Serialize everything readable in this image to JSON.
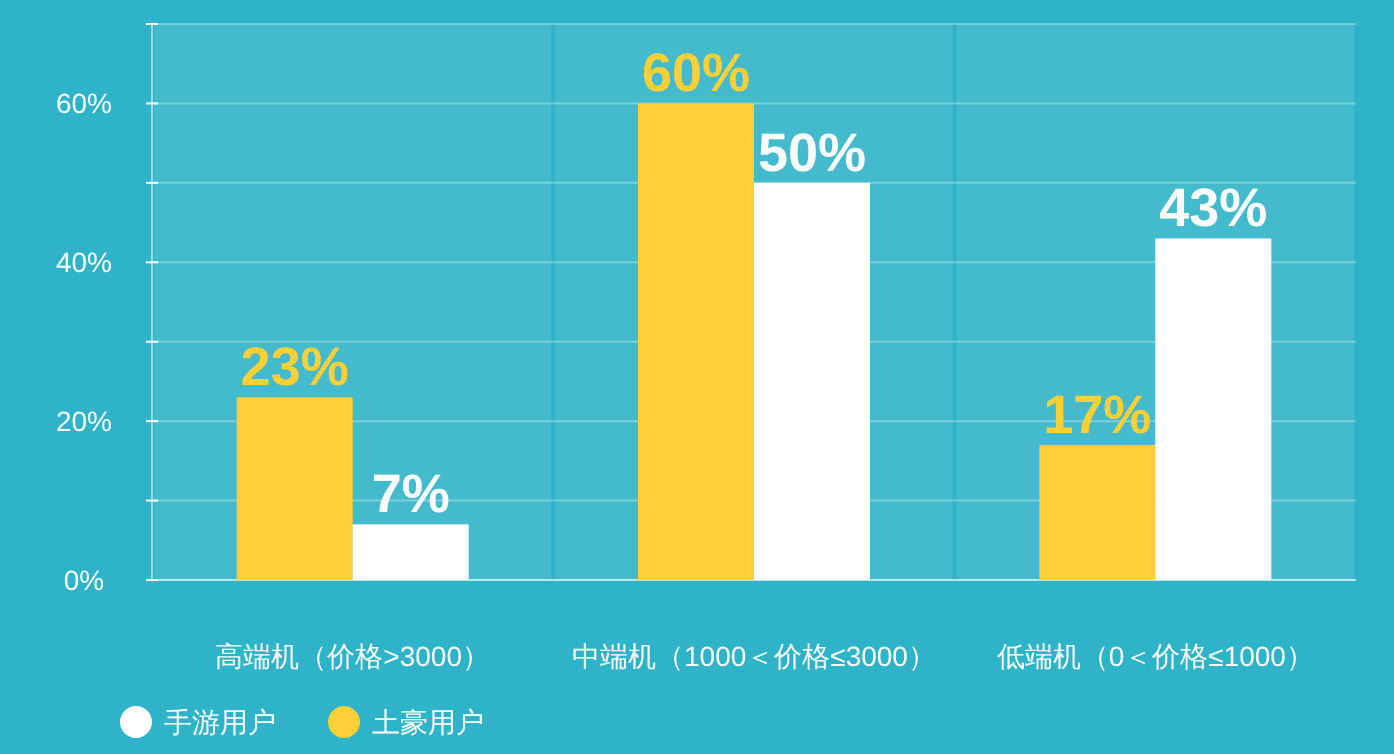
{
  "chart_data": {
    "type": "bar",
    "categories": [
      "高端机（价格>3000）",
      "中端机（1000＜价格≤3000）",
      "低端机（0＜价格≤1000）"
    ],
    "series": [
      {
        "name": "土豪用户",
        "color": "#fdd037",
        "values": [
          23,
          60,
          17
        ],
        "value_labels": [
          "23%",
          "60%",
          "17%"
        ]
      },
      {
        "name": "手游用户",
        "color": "#ffffff",
        "values": [
          7,
          50,
          43
        ],
        "value_labels": [
          "7%",
          "50%",
          "43%"
        ]
      }
    ],
    "ylim": [
      0,
      70
    ],
    "yticks": [
      {
        "value": 0,
        "label": "0%"
      },
      {
        "value": 10,
        "label": null
      },
      {
        "value": 20,
        "label": "20%"
      },
      {
        "value": 30,
        "label": null
      },
      {
        "value": 40,
        "label": "40%"
      },
      {
        "value": 50,
        "label": null
      },
      {
        "value": 60,
        "label": "60%"
      },
      {
        "value": 70,
        "label": null
      }
    ],
    "grid": "y",
    "legend": "bottom left"
  }
}
